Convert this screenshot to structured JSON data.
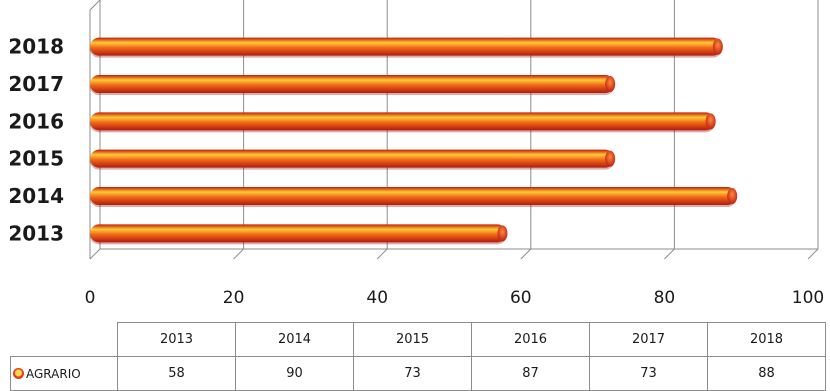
{
  "chart_data": {
    "type": "bar",
    "orientation": "horizontal",
    "categories": [
      "2013",
      "2014",
      "2015",
      "2016",
      "2017",
      "2018"
    ],
    "series": [
      {
        "name": "AGRARIO",
        "values": [
          58,
          90,
          73,
          87,
          73,
          88
        ],
        "color": "#e8371d",
        "highlight_color": "#ffd84a"
      }
    ],
    "xlim": [
      0,
      100
    ],
    "xticks": [
      "0",
      "20",
      "40",
      "60",
      "80",
      "100"
    ],
    "grid": true,
    "legend": "in data table"
  },
  "table": {
    "headers": [
      "2013",
      "2014",
      "2015",
      "2016",
      "2017",
      "2018"
    ],
    "series_label": "AGRARIO",
    "values": [
      "58",
      "90",
      "73",
      "87",
      "73",
      "88"
    ]
  }
}
